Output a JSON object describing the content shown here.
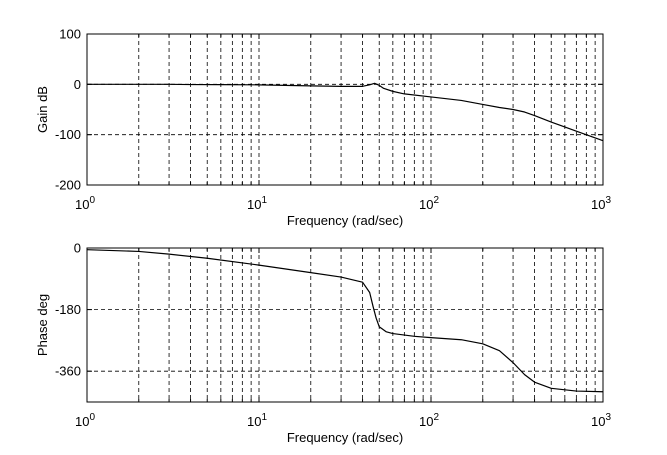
{
  "chart_data": [
    {
      "type": "line",
      "xscale": "log",
      "xlim": [
        1,
        1000
      ],
      "ylim": [
        -200,
        100
      ],
      "grid": true,
      "xlabel": "Frequency (rad/sec)",
      "ylabel": "Gain dB",
      "xtick_labels": [
        {
          "base": "10",
          "exp": "0"
        },
        {
          "base": "10",
          "exp": "1"
        },
        {
          "base": "10",
          "exp": "2"
        },
        {
          "base": "10",
          "exp": "3"
        }
      ],
      "ytick_labels": [
        "100",
        "0",
        "-100",
        "-200"
      ],
      "yticks": [
        100,
        0,
        -100,
        -200
      ],
      "series": [
        {
          "x": [
            1,
            2,
            3,
            4,
            6,
            10,
            20,
            30,
            40,
            44,
            47,
            50,
            53,
            60,
            70,
            100,
            150,
            200,
            250,
            300,
            350,
            400,
            500,
            700,
            1000
          ],
          "y": [
            0,
            0,
            0,
            -0.5,
            -0.6,
            -1,
            -3,
            -4,
            -4,
            -1,
            2,
            -2,
            -8,
            -14,
            -19,
            -25,
            -32,
            -40,
            -46,
            -50,
            -55,
            -62,
            -75,
            -93,
            -112
          ]
        }
      ]
    },
    {
      "type": "line",
      "xscale": "log",
      "xlim": [
        1,
        1000
      ],
      "ylim": [
        -450,
        0
      ],
      "grid": true,
      "xlabel": "Frequency (rad/sec)",
      "ylabel": "Phase deg",
      "xtick_labels": [
        {
          "base": "10",
          "exp": "0"
        },
        {
          "base": "10",
          "exp": "1"
        },
        {
          "base": "10",
          "exp": "2"
        },
        {
          "base": "10",
          "exp": "3"
        }
      ],
      "ytick_labels": [
        "0",
        "-180",
        "-360"
      ],
      "yticks": [
        0,
        -180,
        -360
      ],
      "series": [
        {
          "x": [
            1,
            2,
            3,
            5,
            10,
            20,
            30,
            40,
            44,
            46,
            48,
            50,
            55,
            60,
            80,
            100,
            150,
            200,
            250,
            300,
            350,
            400,
            500,
            700,
            1000
          ],
          "y": [
            -5,
            -10,
            -18,
            -30,
            -50,
            -72,
            -85,
            -100,
            -130,
            -170,
            -205,
            -230,
            -245,
            -250,
            -258,
            -262,
            -268,
            -280,
            -300,
            -335,
            -370,
            -392,
            -410,
            -418,
            -420
          ]
        }
      ]
    }
  ]
}
